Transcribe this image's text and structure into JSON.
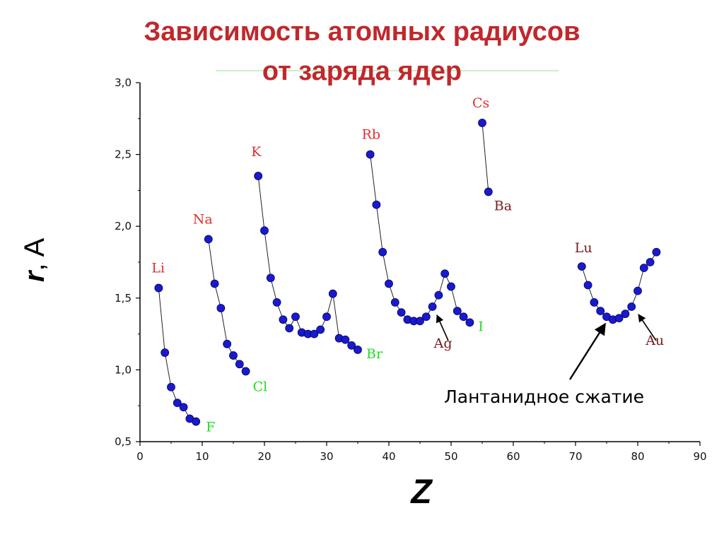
{
  "title": {
    "line1": "Зависимость атомных радиусов",
    "line2": "от заряда ядер"
  },
  "colors": {
    "title": "#c0282c",
    "alkali": "#e03030",
    "halogen": "#22dd22",
    "other": "#7a1a1a",
    "point": "#1a1acc",
    "line": "#222222"
  },
  "chart_data": {
    "type": "scatter",
    "title": "Зависимость атомных радиусов от заряда ядер",
    "xlabel": "Z",
    "ylabel_var": "r",
    "ylabel_unit": ", A",
    "xlim": [
      0,
      90
    ],
    "ylim": [
      0.5,
      3.0
    ],
    "x_ticks": [
      0,
      10,
      20,
      30,
      40,
      50,
      60,
      70,
      80,
      90
    ],
    "y_ticks": [
      {
        "v": 0.5,
        "label": "0,5"
      },
      {
        "v": 1.0,
        "label": "1,0"
      },
      {
        "v": 1.5,
        "label": "1,5"
      },
      {
        "v": 2.0,
        "label": "2,0"
      },
      {
        "v": 2.5,
        "label": "2,5"
      },
      {
        "v": 3.0,
        "label": "3,0"
      }
    ],
    "grid": false,
    "series": [
      {
        "x": [
          3,
          4,
          5,
          6,
          7,
          8,
          9
        ],
        "y": [
          1.57,
          1.12,
          0.88,
          0.77,
          0.74,
          0.66,
          0.64
        ]
      },
      {
        "x": [
          11,
          12,
          13,
          14,
          15,
          16,
          17
        ],
        "y": [
          1.91,
          1.6,
          1.43,
          1.18,
          1.1,
          1.04,
          0.99
        ]
      },
      {
        "x": [
          19,
          20,
          21,
          22,
          23,
          24,
          25,
          26,
          27,
          28,
          29,
          30,
          31,
          32,
          33,
          34,
          35
        ],
        "y": [
          2.35,
          1.97,
          1.64,
          1.47,
          1.35,
          1.29,
          1.37,
          1.26,
          1.25,
          1.25,
          1.28,
          1.37,
          1.53,
          1.22,
          1.21,
          1.17,
          1.14
        ]
      },
      {
        "x": [
          37,
          38,
          39,
          40,
          41,
          42,
          43,
          44,
          45,
          46,
          47,
          48,
          49,
          50,
          51,
          52,
          53
        ],
        "y": [
          2.5,
          2.15,
          1.82,
          1.6,
          1.47,
          1.4,
          1.35,
          1.34,
          1.34,
          1.37,
          1.44,
          1.52,
          1.67,
          1.58,
          1.41,
          1.37,
          1.33
        ]
      },
      {
        "x": [
          55,
          56
        ],
        "y": [
          2.72,
          2.24
        ]
      },
      {
        "x": [
          71,
          72,
          73,
          74,
          75,
          76,
          77,
          78,
          79,
          80,
          81,
          82,
          83
        ],
        "y": [
          1.72,
          1.59,
          1.47,
          1.41,
          1.37,
          1.35,
          1.36,
          1.39,
          1.44,
          1.55,
          1.71,
          1.75,
          1.82
        ]
      }
    ],
    "element_labels": [
      {
        "text": "Li",
        "x": 3,
        "y": 1.57,
        "group": "alkali"
      },
      {
        "text": "Na",
        "x": 11,
        "y": 1.91,
        "group": "alkali"
      },
      {
        "text": "K",
        "x": 19,
        "y": 2.35,
        "group": "alkali"
      },
      {
        "text": "Rb",
        "x": 37,
        "y": 2.5,
        "group": "alkali"
      },
      {
        "text": "Cs",
        "x": 55,
        "y": 2.72,
        "group": "alkali"
      },
      {
        "text": "F",
        "x": 9,
        "y": 0.64,
        "group": "halogen"
      },
      {
        "text": "Cl",
        "x": 17,
        "y": 0.99,
        "group": "halogen"
      },
      {
        "text": "Br",
        "x": 35,
        "y": 1.14,
        "group": "halogen"
      },
      {
        "text": "I",
        "x": 53,
        "y": 1.33,
        "group": "halogen"
      },
      {
        "text": "Ba",
        "x": 56,
        "y": 2.24,
        "group": "other"
      },
      {
        "text": "Ag",
        "x": 47,
        "y": 1.44,
        "group": "other"
      },
      {
        "text": "Lu",
        "x": 71,
        "y": 1.72,
        "group": "other"
      },
      {
        "text": "Au",
        "x": 79,
        "y": 1.44,
        "group": "other"
      }
    ],
    "annotation": {
      "text": "Лантанидное сжатие",
      "points_to": {
        "x": 75,
        "y": 1.37
      }
    }
  }
}
